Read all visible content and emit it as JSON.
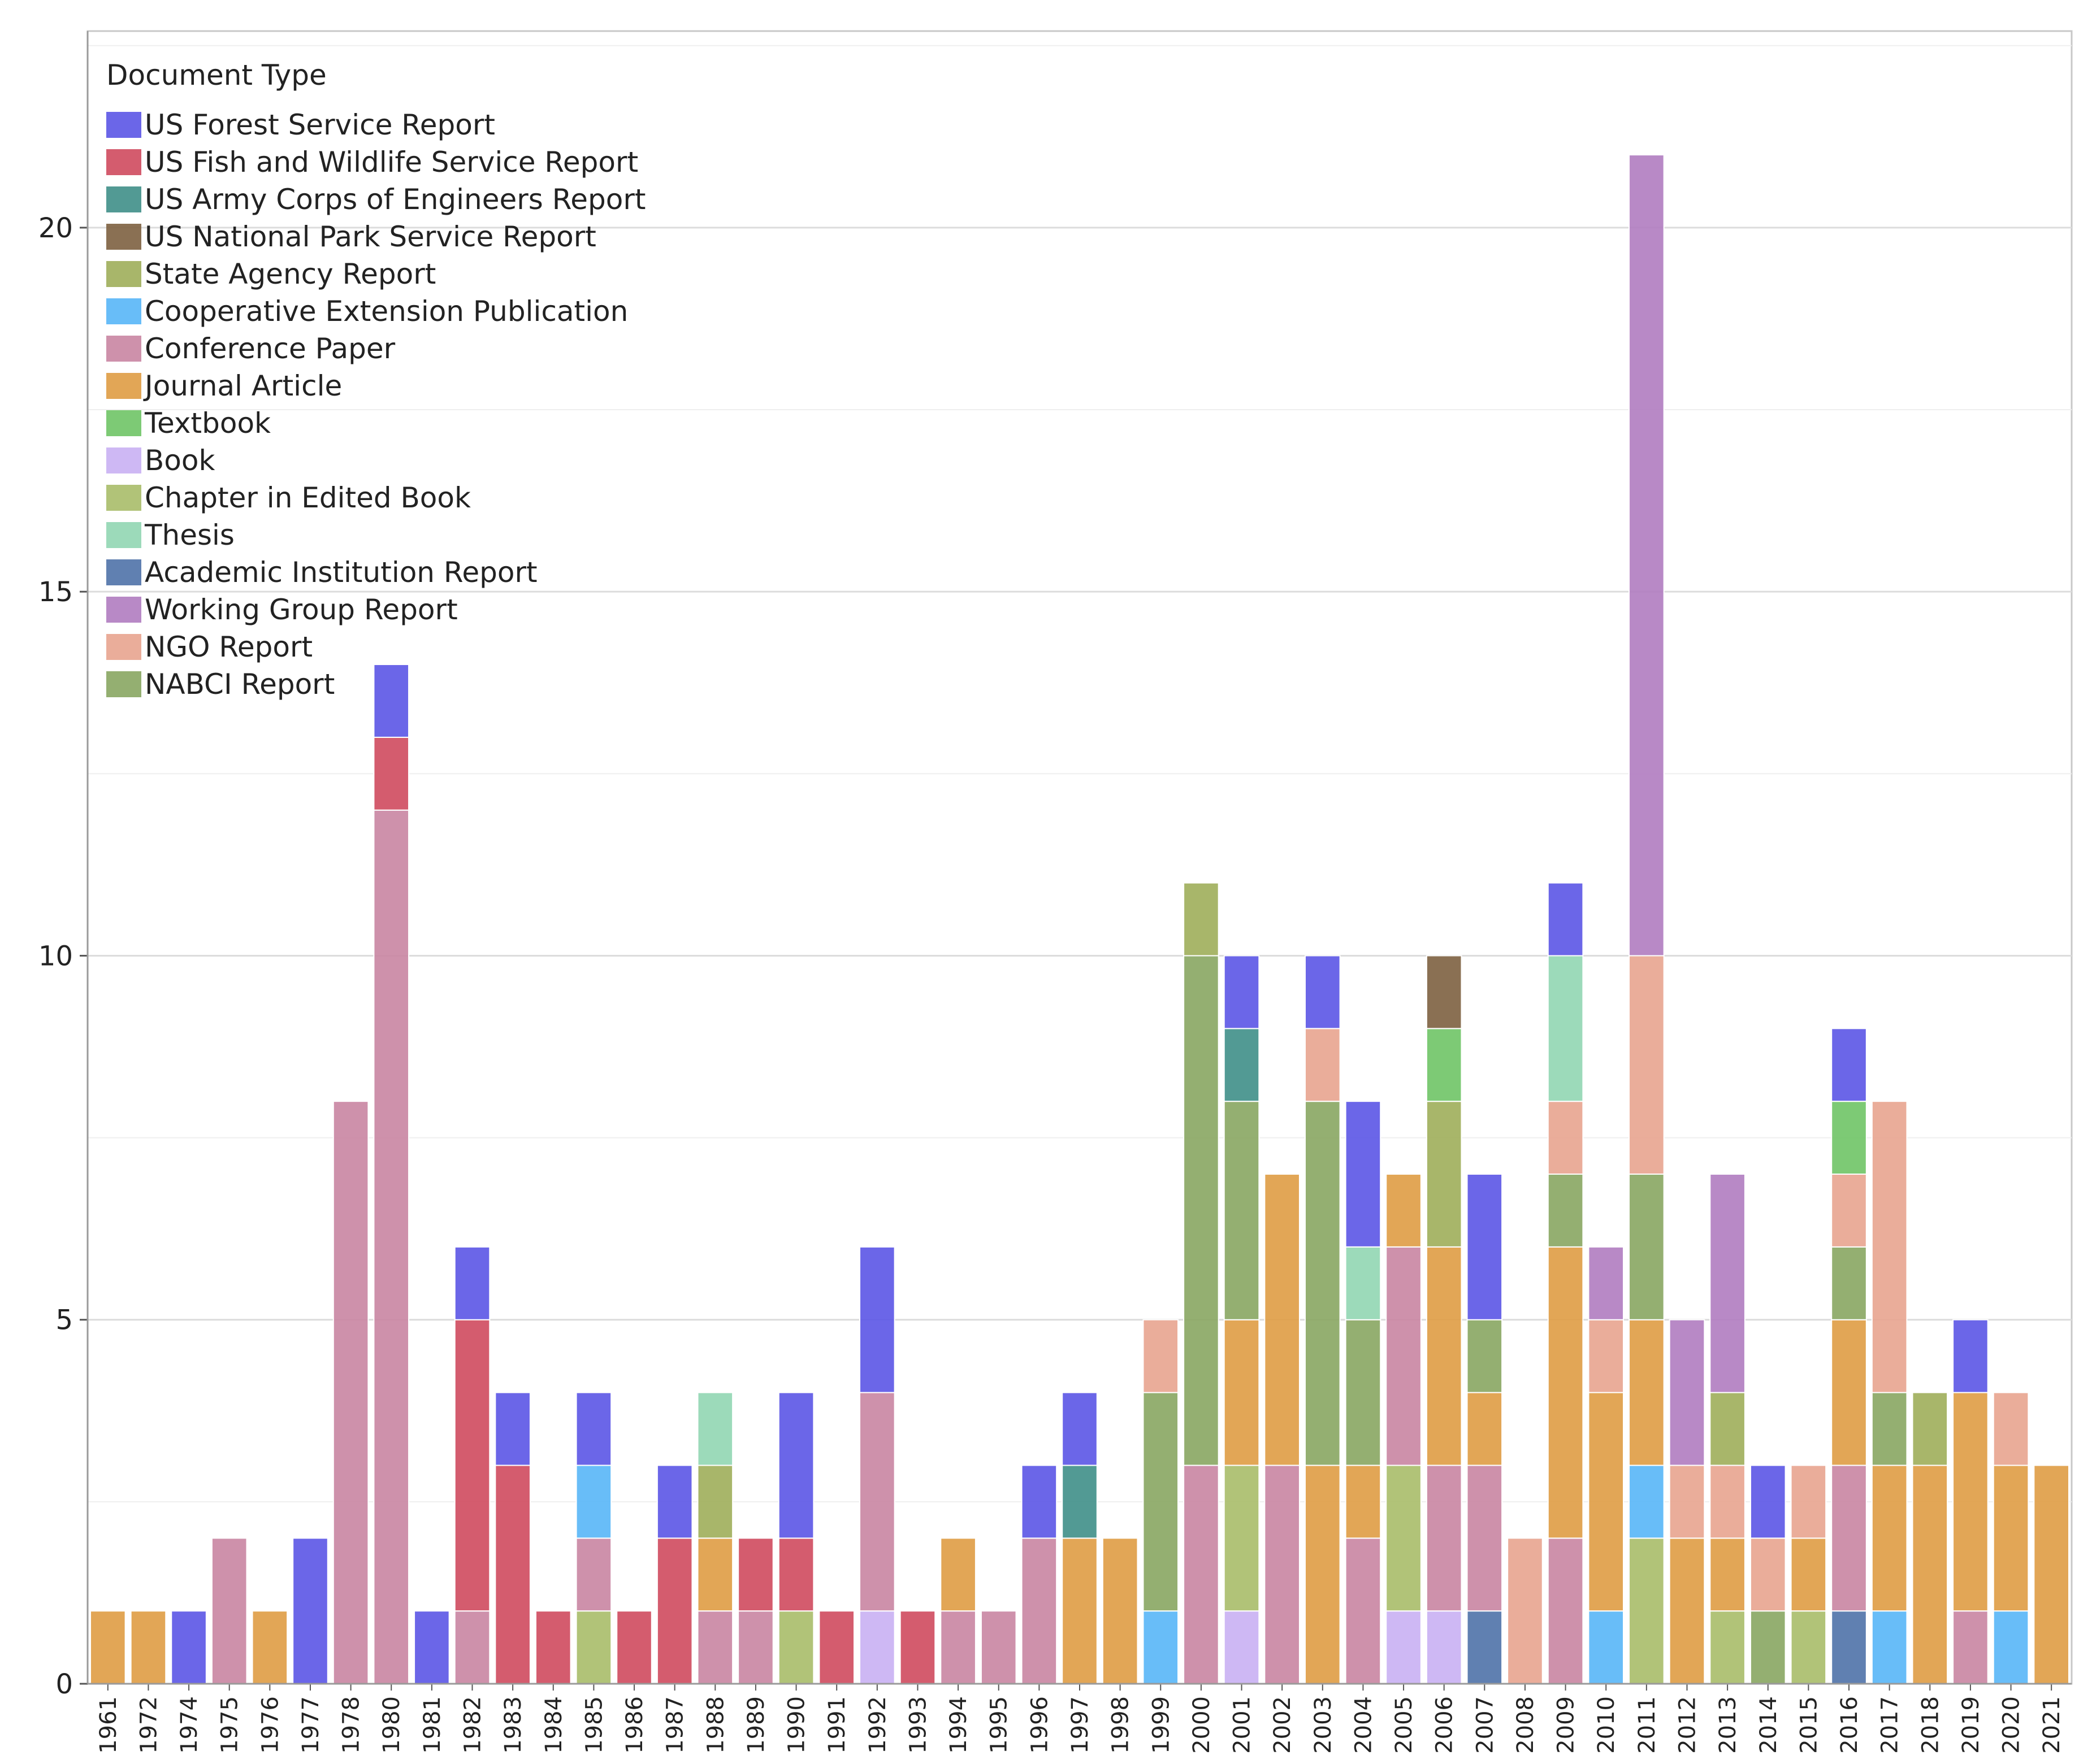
{
  "chart_data": {
    "type": "bar",
    "stacked": true,
    "title": "",
    "xlabel": "",
    "ylabel": "",
    "ylim": [
      0,
      22.7
    ],
    "yticks": [
      0,
      5,
      10,
      15,
      20
    ],
    "grid": true,
    "legend": {
      "title": "Document Type",
      "placement": "top-left"
    },
    "categories": [
      "1961",
      "1972",
      "1974",
      "1975",
      "1976",
      "1977",
      "1978",
      "1980",
      "1981",
      "1982",
      "1983",
      "1984",
      "1985",
      "1986",
      "1987",
      "1988",
      "1989",
      "1990",
      "1991",
      "1992",
      "1993",
      "1994",
      "1995",
      "1996",
      "1997",
      "1998",
      "1999",
      "2000",
      "2001",
      "2002",
      "2003",
      "2004",
      "2005",
      "2006",
      "2007",
      "2008",
      "2009",
      "2010",
      "2011",
      "2012",
      "2013",
      "2014",
      "2015",
      "2016",
      "2017",
      "2018",
      "2019",
      "2020",
      "2021"
    ],
    "series": [
      {
        "name": "US Forest Service Report",
        "color": "#5b55e6"
      },
      {
        "name": "US Fish and Wildlife Service Report",
        "color": "#cf4a5e"
      },
      {
        "name": "US Army Corps of Engineers Report",
        "color": "#3f8f88"
      },
      {
        "name": "US National Park Service Report",
        "color": "#7d6040"
      },
      {
        "name": "State Agency Report",
        "color": "#9fae5a"
      },
      {
        "name": "Cooperative Extension Publication",
        "color": "#58b6f7"
      },
      {
        "name": "Conference Paper",
        "color": "#c985a2"
      },
      {
        "name": "Journal Article",
        "color": "#df9c44"
      },
      {
        "name": "Textbook",
        "color": "#6fc466"
      },
      {
        "name": "Book",
        "color": "#c9b0f3"
      },
      {
        "name": "Chapter in Edited Book",
        "color": "#a9bc69"
      },
      {
        "name": "Thesis",
        "color": "#91d6b2"
      },
      {
        "name": "Academic Institution Report",
        "color": "#4f72a8"
      },
      {
        "name": "Working Group Report",
        "color": "#b07cc0"
      },
      {
        "name": "NGO Report",
        "color": "#e8a48f"
      },
      {
        "name": "NABCI Report",
        "color": "#88a662"
      }
    ],
    "stacks": [
      [
        [
          "Journal Article",
          1
        ]
      ],
      [
        [
          "Journal Article",
          1
        ]
      ],
      [
        [
          "US Forest Service Report",
          1
        ]
      ],
      [
        [
          "Conference Paper",
          2
        ]
      ],
      [
        [
          "Journal Article",
          1
        ]
      ],
      [
        [
          "US Forest Service Report",
          2
        ]
      ],
      [
        [
          "Conference Paper",
          8
        ]
      ],
      [
        [
          "Conference Paper",
          12
        ],
        [
          "US Fish and Wildlife Service Report",
          1
        ],
        [
          "US Forest Service Report",
          1
        ]
      ],
      [
        [
          "US Forest Service Report",
          1
        ]
      ],
      [
        [
          "Conference Paper",
          1
        ],
        [
          "US Fish and Wildlife Service Report",
          4
        ],
        [
          "US Forest Service Report",
          1
        ]
      ],
      [
        [
          "US Fish and Wildlife Service Report",
          3
        ],
        [
          "US Forest Service Report",
          1
        ]
      ],
      [
        [
          "US Fish and Wildlife Service Report",
          1
        ]
      ],
      [
        [
          "Chapter in Edited Book",
          1
        ],
        [
          "Conference Paper",
          1
        ],
        [
          "Cooperative Extension Publication",
          1
        ],
        [
          "US Forest Service Report",
          1
        ]
      ],
      [
        [
          "US Fish and Wildlife Service Report",
          1
        ]
      ],
      [
        [
          "US Fish and Wildlife Service Report",
          2
        ],
        [
          "US Forest Service Report",
          1
        ]
      ],
      [
        [
          "Conference Paper",
          1
        ],
        [
          "Journal Article",
          1
        ],
        [
          "State Agency Report",
          1
        ],
        [
          "Thesis",
          1
        ]
      ],
      [
        [
          "Conference Paper",
          1
        ],
        [
          "US Fish and Wildlife Service Report",
          1
        ]
      ],
      [
        [
          "Chapter in Edited Book",
          1
        ],
        [
          "US Fish and Wildlife Service Report",
          1
        ],
        [
          "US Forest Service Report",
          2
        ]
      ],
      [
        [
          "US Fish and Wildlife Service Report",
          1
        ]
      ],
      [
        [
          "Book",
          1
        ],
        [
          "Conference Paper",
          3
        ],
        [
          "US Forest Service Report",
          2
        ]
      ],
      [
        [
          "US Fish and Wildlife Service Report",
          1
        ]
      ],
      [
        [
          "Conference Paper",
          1
        ],
        [
          "Journal Article",
          1
        ]
      ],
      [
        [
          "Conference Paper",
          1
        ]
      ],
      [
        [
          "Conference Paper",
          2
        ],
        [
          "US Forest Service Report",
          1
        ]
      ],
      [
        [
          "Journal Article",
          2
        ],
        [
          "US Army Corps of Engineers Report",
          1
        ],
        [
          "US Forest Service Report",
          1
        ]
      ],
      [
        [
          "Journal Article",
          2
        ]
      ],
      [
        [
          "Cooperative Extension Publication",
          1
        ],
        [
          "NABCI Report",
          3
        ],
        [
          "NGO Report",
          1
        ]
      ],
      [
        [
          "Conference Paper",
          3
        ],
        [
          "NABCI Report",
          7
        ],
        [
          "State Agency Report",
          1
        ]
      ],
      [
        [
          "Book",
          1
        ],
        [
          "Chapter in Edited Book",
          2
        ],
        [
          "Journal Article",
          2
        ],
        [
          "NABCI Report",
          3
        ],
        [
          "US Army Corps of Engineers Report",
          1
        ],
        [
          "US Forest Service Report",
          1
        ]
      ],
      [
        [
          "Conference Paper",
          3
        ],
        [
          "Journal Article",
          4
        ]
      ],
      [
        [
          "Journal Article",
          3
        ],
        [
          "NABCI Report",
          5
        ],
        [
          "NGO Report",
          1
        ],
        [
          "US Forest Service Report",
          1
        ]
      ],
      [
        [
          "Conference Paper",
          2
        ],
        [
          "Journal Article",
          1
        ],
        [
          "NABCI Report",
          2
        ],
        [
          "Thesis",
          1
        ],
        [
          "US Forest Service Report",
          2
        ]
      ],
      [
        [
          "Book",
          1
        ],
        [
          "Chapter in Edited Book",
          2
        ],
        [
          "Conference Paper",
          3
        ],
        [
          "Journal Article",
          1
        ]
      ],
      [
        [
          "Book",
          1
        ],
        [
          "Conference Paper",
          2
        ],
        [
          "Journal Article",
          3
        ],
        [
          "State Agency Report",
          2
        ],
        [
          "Textbook",
          1
        ],
        [
          "US National Park Service Report",
          1
        ]
      ],
      [
        [
          "Academic Institution Report",
          1
        ],
        [
          "Conference Paper",
          2
        ],
        [
          "Journal Article",
          1
        ],
        [
          "NABCI Report",
          1
        ],
        [
          "US Forest Service Report",
          2
        ]
      ],
      [
        [
          "NGO Report",
          2
        ]
      ],
      [
        [
          "Conference Paper",
          2
        ],
        [
          "Journal Article",
          4
        ],
        [
          "NABCI Report",
          1
        ],
        [
          "NGO Report",
          1
        ],
        [
          "Thesis",
          2
        ],
        [
          "US Forest Service Report",
          1
        ]
      ],
      [
        [
          "Cooperative Extension Publication",
          1
        ],
        [
          "Journal Article",
          3
        ],
        [
          "NGO Report",
          1
        ],
        [
          "Working Group Report",
          1
        ]
      ],
      [
        [
          "Chapter in Edited Book",
          2
        ],
        [
          "Cooperative Extension Publication",
          1
        ],
        [
          "Journal Article",
          2
        ],
        [
          "NABCI Report",
          2
        ],
        [
          "NGO Report",
          3
        ],
        [
          "Working Group Report",
          11
        ]
      ],
      [
        [
          "Journal Article",
          2
        ],
        [
          "NGO Report",
          1
        ],
        [
          "Working Group Report",
          2
        ]
      ],
      [
        [
          "Chapter in Edited Book",
          1
        ],
        [
          "Journal Article",
          1
        ],
        [
          "NGO Report",
          1
        ],
        [
          "State Agency Report",
          1
        ],
        [
          "Working Group Report",
          3
        ]
      ],
      [
        [
          "NABCI Report",
          1
        ],
        [
          "NGO Report",
          1
        ],
        [
          "US Forest Service Report",
          1
        ]
      ],
      [
        [
          "Chapter in Edited Book",
          1
        ],
        [
          "Journal Article",
          1
        ],
        [
          "NGO Report",
          1
        ]
      ],
      [
        [
          "Academic Institution Report",
          1
        ],
        [
          "Conference Paper",
          2
        ],
        [
          "Journal Article",
          2
        ],
        [
          "NABCI Report",
          1
        ],
        [
          "NGO Report",
          1
        ],
        [
          "Textbook",
          1
        ],
        [
          "US Forest Service Report",
          1
        ]
      ],
      [
        [
          "Cooperative Extension Publication",
          1
        ],
        [
          "Journal Article",
          2
        ],
        [
          "NABCI Report",
          1
        ],
        [
          "NGO Report",
          4
        ]
      ],
      [
        [
          "Journal Article",
          3
        ],
        [
          "State Agency Report",
          1
        ]
      ],
      [
        [
          "Conference Paper",
          1
        ],
        [
          "Journal Article",
          3
        ],
        [
          "US Forest Service Report",
          1
        ]
      ],
      [
        [
          "Cooperative Extension Publication",
          1
        ],
        [
          "Journal Article",
          2
        ],
        [
          "NGO Report",
          1
        ]
      ],
      [
        [
          "Journal Article",
          3
        ]
      ]
    ]
  }
}
